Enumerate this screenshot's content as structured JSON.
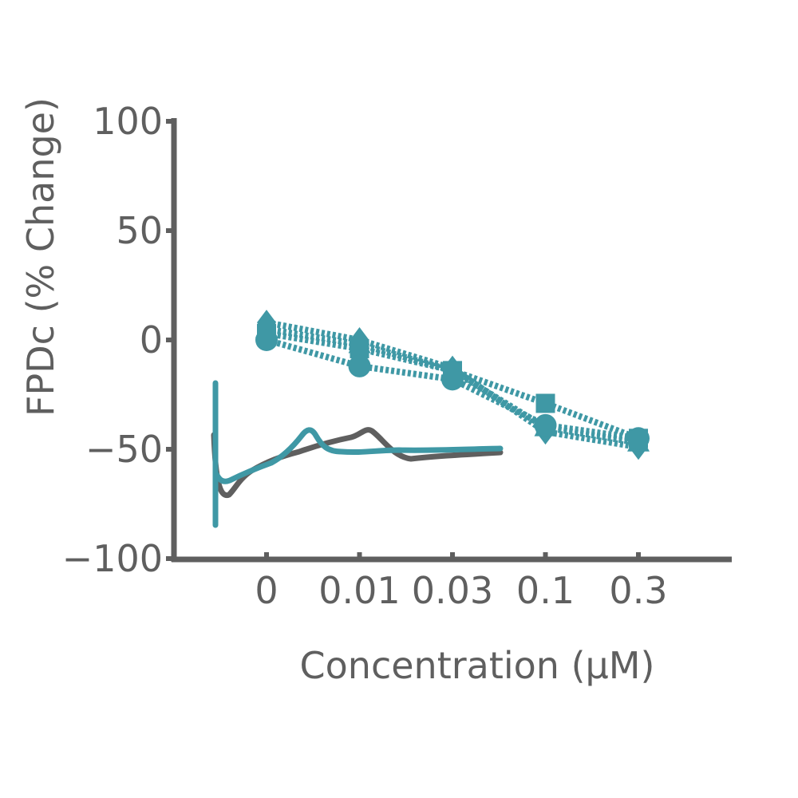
{
  "chart_data": {
    "type": "line",
    "title": "",
    "xlabel": "Concentration (µM)",
    "ylabel": "FPDc (% Change)",
    "categories": [
      "0",
      "0.01",
      "0.03",
      "0.1",
      "0.3"
    ],
    "yticks": [
      100,
      50,
      0,
      -50,
      -100
    ],
    "ytick_labels": [
      "100",
      "50",
      "0",
      "−50",
      "−100"
    ],
    "ylim": [
      -100,
      100
    ],
    "grid": false,
    "legend": "none",
    "colors": {
      "axis": "#5f5f5f",
      "series": "#3f98a5",
      "trace_gray": "#5f5f5f",
      "trace_teal": "#3f98a5"
    },
    "series": [
      {
        "marker": "diamond",
        "values": [
          8,
          0,
          -13,
          -42,
          -49
        ]
      },
      {
        "marker": "triangle",
        "values": [
          5,
          -2,
          -14,
          -40,
          -47
        ]
      },
      {
        "marker": "square",
        "values": [
          3,
          -4,
          -14,
          -29,
          -45
        ]
      },
      {
        "marker": "circle",
        "values": [
          0,
          -12,
          -18,
          -39,
          -45
        ]
      }
    ]
  }
}
